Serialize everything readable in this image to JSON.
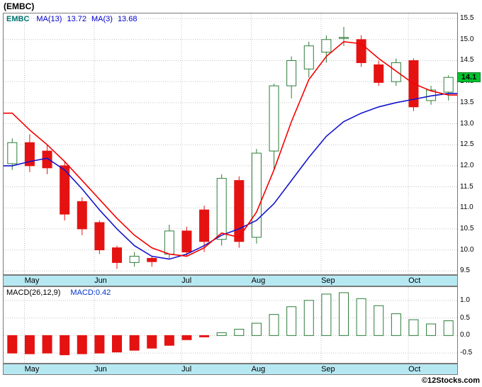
{
  "title": "(EMBC)",
  "footer": "©12Stocks.com",
  "main_chart": {
    "legend": {
      "symbol": "EMBC",
      "ma13_label": "MA(13)",
      "ma13_value": "13.72",
      "ma3_label": "MA(3)",
      "ma3_value": "13.68"
    },
    "price_badge": "14.1"
  },
  "macd_chart": {
    "legend": {
      "label": "MACD(26,12,9)",
      "value": "MACD:0.42"
    }
  },
  "colors": {
    "up": "#2e7d3a",
    "down": "#e51212",
    "ma_fast_red": "#f40000",
    "ma_slow_blue": "#1414cc",
    "grid": "#c2c2c2",
    "band_bg": "#b6e8f2",
    "badge_bg": "#00c22e",
    "badge_border": "#067f22",
    "legend_symbol": "#007474",
    "legend_ma": "#0000cc",
    "macd_label": "#000000",
    "macd_value": "#0033cc"
  },
  "chart_data": [
    {
      "type": "candlestick",
      "title": "EMBC weekly price with MA(13) and MA(3)",
      "ylim": [
        9.42,
        15.62
      ],
      "y_ticks": [
        15.5,
        15.0,
        14.5,
        14.0,
        13.5,
        13.0,
        12.5,
        12.0,
        11.5,
        11.0,
        10.5,
        10.0,
        9.5
      ],
      "last_price": 14.1,
      "x_months": [
        {
          "label": "May",
          "index": 1
        },
        {
          "label": "Jun",
          "index": 5
        },
        {
          "label": "Jul",
          "index": 10
        },
        {
          "label": "Aug",
          "index": 14
        },
        {
          "label": "Sep",
          "index": 18
        },
        {
          "label": "Oct",
          "index": 23
        }
      ],
      "candles": [
        {
          "o": 12.05,
          "h": 12.65,
          "l": 11.9,
          "c": 12.55
        },
        {
          "o": 12.55,
          "h": 12.75,
          "l": 11.85,
          "c": 12.0
        },
        {
          "o": 12.35,
          "h": 12.5,
          "l": 11.8,
          "c": 11.95
        },
        {
          "o": 12.0,
          "h": 12.1,
          "l": 10.7,
          "c": 10.85
        },
        {
          "o": 11.15,
          "h": 11.25,
          "l": 10.35,
          "c": 10.5
        },
        {
          "o": 10.65,
          "h": 10.7,
          "l": 9.9,
          "c": 10.0
        },
        {
          "o": 10.05,
          "h": 10.1,
          "l": 9.55,
          "c": 9.7
        },
        {
          "o": 9.7,
          "h": 9.95,
          "l": 9.6,
          "c": 9.85
        },
        {
          "o": 9.8,
          "h": 9.85,
          "l": 9.6,
          "c": 9.72
        },
        {
          "o": 9.9,
          "h": 10.6,
          "l": 9.8,
          "c": 10.45
        },
        {
          "o": 10.45,
          "h": 10.55,
          "l": 9.85,
          "c": 9.95
        },
        {
          "o": 10.95,
          "h": 11.05,
          "l": 9.95,
          "c": 10.2
        },
        {
          "o": 10.25,
          "h": 11.8,
          "l": 10.1,
          "c": 11.7
        },
        {
          "o": 11.65,
          "h": 11.75,
          "l": 10.05,
          "c": 10.2
        },
        {
          "o": 10.3,
          "h": 12.4,
          "l": 10.15,
          "c": 12.3
        },
        {
          "o": 12.35,
          "h": 13.95,
          "l": 11.9,
          "c": 13.9
        },
        {
          "o": 13.9,
          "h": 14.6,
          "l": 13.6,
          "c": 14.5
        },
        {
          "o": 14.3,
          "h": 14.95,
          "l": 14.1,
          "c": 14.85
        },
        {
          "o": 14.7,
          "h": 15.1,
          "l": 14.45,
          "c": 15.0
        },
        {
          "o": 15.05,
          "h": 15.3,
          "l": 14.85,
          "c": 15.05
        },
        {
          "o": 15.0,
          "h": 15.1,
          "l": 14.35,
          "c": 14.45
        },
        {
          "o": 14.4,
          "h": 14.5,
          "l": 13.9,
          "c": 13.98
        },
        {
          "o": 14.0,
          "h": 14.55,
          "l": 13.9,
          "c": 14.45
        },
        {
          "o": 14.5,
          "h": 14.55,
          "l": 13.3,
          "c": 13.4
        },
        {
          "o": 13.55,
          "h": 13.9,
          "l": 13.45,
          "c": 13.8
        },
        {
          "o": 13.75,
          "h": 14.15,
          "l": 13.55,
          "c": 14.1
        }
      ],
      "series": [
        {
          "name": "MA(13)",
          "color": "#1414cc",
          "values": [
            12.0,
            12.1,
            12.18,
            11.9,
            11.45,
            10.95,
            10.5,
            10.1,
            9.85,
            9.78,
            9.9,
            10.1,
            10.35,
            10.5,
            10.7,
            11.1,
            11.65,
            12.2,
            12.7,
            13.05,
            13.25,
            13.4,
            13.5,
            13.58,
            13.66,
            13.72
          ]
        },
        {
          "name": "MA(3)",
          "color": "#f40000",
          "values": [
            13.25,
            12.85,
            12.5,
            12.1,
            11.65,
            11.2,
            10.75,
            10.35,
            10.05,
            9.9,
            9.85,
            10.05,
            10.4,
            10.3,
            10.9,
            11.9,
            13.05,
            14.05,
            14.6,
            14.95,
            14.9,
            14.55,
            14.25,
            13.95,
            13.78,
            13.68
          ]
        }
      ]
    },
    {
      "type": "bar",
      "title": "MACD(26,12,9)",
      "ylim": [
        -0.78,
        1.38
      ],
      "y_ticks": [
        1.0,
        0.5,
        0.0,
        -0.5
      ],
      "last_value": 0.42,
      "values": [
        -0.5,
        -0.52,
        -0.5,
        -0.55,
        -0.52,
        -0.5,
        -0.47,
        -0.42,
        -0.36,
        -0.28,
        -0.12,
        -0.04,
        0.08,
        0.18,
        0.35,
        0.6,
        0.82,
        1.0,
        1.18,
        1.22,
        1.05,
        0.85,
        0.62,
        0.45,
        0.33,
        0.42
      ]
    }
  ]
}
